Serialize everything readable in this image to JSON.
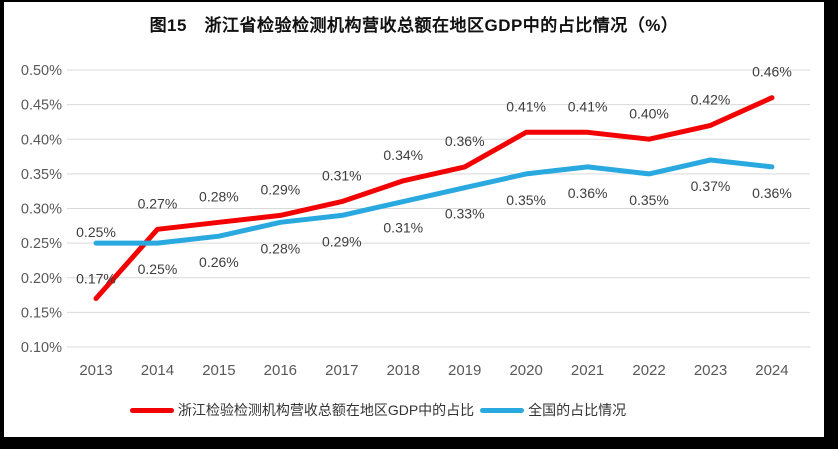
{
  "title": "图15　浙江省检验检测机构营收总额在地区GDP中的占比情况（%）",
  "chart_data": {
    "type": "line",
    "title": "图15　浙江省检验检测机构营收总额在地区GDP中的占比情况（%）",
    "categories": [
      "2013",
      "2014",
      "2015",
      "2016",
      "2017",
      "2018",
      "2019",
      "2020",
      "2021",
      "2022",
      "2023",
      "2024"
    ],
    "series": [
      {
        "name": "浙江检验检测机构营收总额在地区GDP中的占比",
        "color": "#f20202",
        "values": [
          0.17,
          0.27,
          0.28,
          0.29,
          0.31,
          0.34,
          0.36,
          0.41,
          0.41,
          0.4,
          0.42,
          0.46
        ],
        "labels": [
          "0.17%",
          "0.27%",
          "0.28%",
          "0.29%",
          "0.31%",
          "0.34%",
          "0.36%",
          "0.41%",
          "0.41%",
          "0.40%",
          "0.42%",
          "0.46%"
        ],
        "label_side": "above"
      },
      {
        "name": "全国的占比情况",
        "color": "#2aa9e0",
        "values": [
          0.25,
          0.25,
          0.26,
          0.28,
          0.29,
          0.31,
          0.33,
          0.35,
          0.36,
          0.35,
          0.37,
          0.36
        ],
        "labels": [
          "0.25%",
          "0.25%",
          "0.26%",
          "0.28%",
          "0.29%",
          "0.31%",
          "0.33%",
          "0.35%",
          "0.36%",
          "0.35%",
          "0.37%",
          "0.36%"
        ],
        "label_side": "below"
      }
    ],
    "ylim": [
      0.1,
      0.5
    ],
    "ytick_values": [
      0.5,
      0.45,
      0.4,
      0.35,
      0.3,
      0.25,
      0.2,
      0.15,
      0.1
    ],
    "ytick_labels": [
      "0.50%",
      "0.45%",
      "0.40%",
      "0.35%",
      "0.30%",
      "0.25%",
      "0.20%",
      "0.15%",
      "0.10%"
    ],
    "xlabel": "",
    "ylabel": "",
    "grid": true,
    "legend_position": "bottom",
    "colors": {
      "gridline": "#d9d9d9",
      "axis_label": "#595959",
      "data_label": "#3d3d3d",
      "background": "#ffffff",
      "frame": "#000000"
    }
  }
}
